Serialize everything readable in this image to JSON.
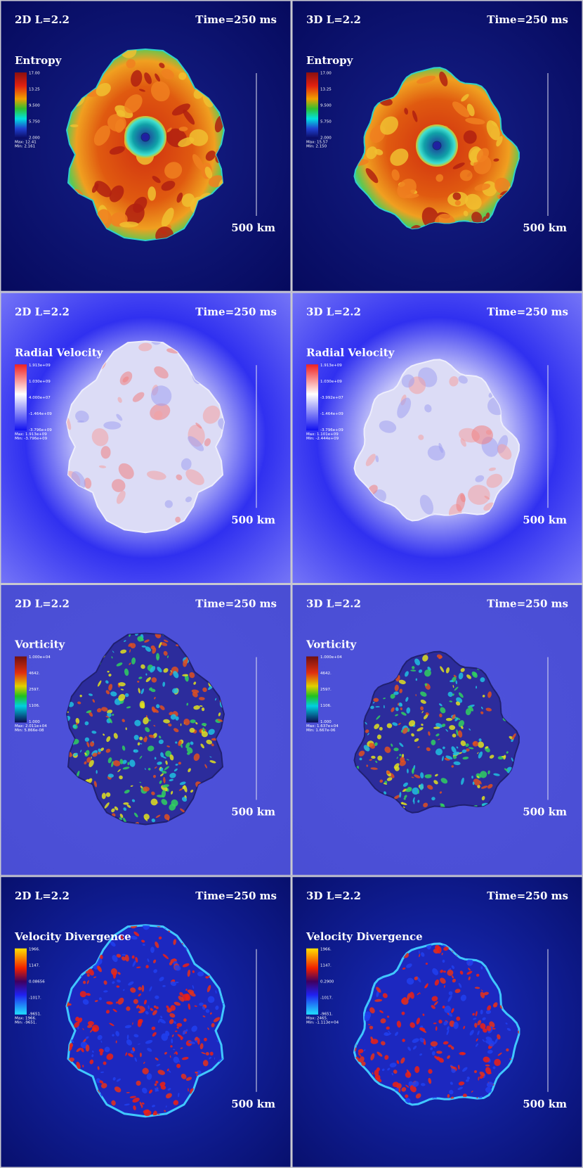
{
  "panels": [
    {
      "label": "2D L=2.2",
      "time": "Time=250 ms",
      "title": "Entropy",
      "colorbar_labels": [
        "17.00",
        "13.25",
        "9.500",
        "5.750",
        "2.000"
      ],
      "stats": [
        "Max: 12.41",
        "Min: 2.161"
      ],
      "scale_label": "500 km"
    },
    {
      "label": "3D L=2.2",
      "time": "Time=250 ms",
      "title": "Entropy",
      "colorbar_labels": [
        "17.00",
        "13.25",
        "9.500",
        "5.750",
        "2.000"
      ],
      "stats": [
        "Max: 15.57",
        "Min: 2.150"
      ],
      "scale_label": "500 km"
    },
    {
      "label": "2D L=2.2",
      "time": "Time=250 ms",
      "title": "Radial Velocity",
      "colorbar_labels": [
        "1.913e+09",
        "1.030e+09",
        "4.000e+07",
        "-1.464e+09",
        "-3.796e+09"
      ],
      "stats": [
        "Max: 1.913e+09",
        "Min: -3.796e+09"
      ],
      "scale_label": "500 km"
    },
    {
      "label": "3D L=2.2",
      "time": "Time=250 ms",
      "title": "Radial Velocity",
      "colorbar_labels": [
        "1.913e+09",
        "1.030e+09",
        "-3.992e+07",
        "-1.464e+09",
        "-3.796e+09"
      ],
      "stats": [
        "Max: 1.101e+09",
        "Min: -2.444e+09"
      ],
      "scale_label": "500 km"
    },
    {
      "label": "2D L=2.2",
      "time": "Time=250 ms",
      "title": "Vorticity",
      "colorbar_labels": [
        "1.000e+04",
        "4642.",
        "2597.",
        "1106.",
        "1.000"
      ],
      "stats": [
        "Max: 2.011e+04",
        "Min: 5.866e-08"
      ],
      "scale_label": "500 km"
    },
    {
      "label": "3D L=2.2",
      "time": "Time=250 ms",
      "title": "Vorticity",
      "colorbar_labels": [
        "1.000e+04",
        "4642.",
        "2597.",
        "1106.",
        "1.000"
      ],
      "stats": [
        "Max: 1.637e+04",
        "Min: 1.667e-06"
      ],
      "scale_label": "500 km"
    },
    {
      "label": "2D L=2.2",
      "time": "Time=250 ms",
      "title": "Velocity Divergence",
      "colorbar_labels": [
        "1966.",
        "1147.",
        "0.08656",
        "-1017.",
        "-9651."
      ],
      "stats": [
        "Max: 1966.",
        "Min: -9651."
      ],
      "scale_label": "500 km"
    },
    {
      "label": "3D L=2.2",
      "time": "Time=250 ms",
      "title": "Velocity Divergence",
      "colorbar_labels": [
        "1966.",
        "1147.",
        "0.2900",
        "-1017.",
        "-9651."
      ],
      "stats": [
        "Max: 2465.",
        "Min: -1.113e+04"
      ],
      "scale_label": "500 km"
    }
  ]
}
